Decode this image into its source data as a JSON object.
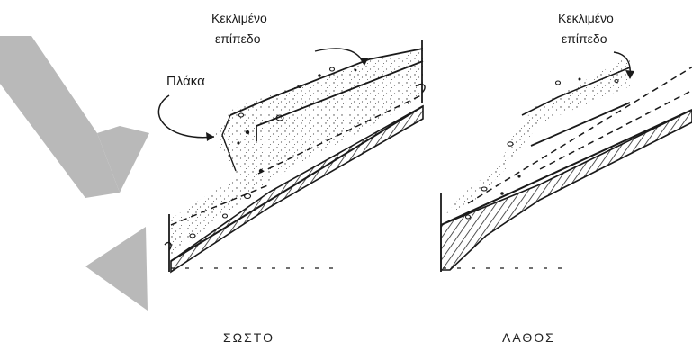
{
  "figures": [
    {
      "id": "correct",
      "label_inclined": [
        "Κεκλιμένο",
        "επίπεδο"
      ],
      "label_slab": "Πλάκα",
      "caption": "ΣΩΣΤΟ"
    },
    {
      "id": "wrong",
      "label_inclined": [
        "Κεκλιμένο",
        "επίπεδο"
      ],
      "caption": "ΛΑΘΟΣ"
    }
  ],
  "colors": {
    "ink": "#1a1a1a",
    "watermark": "#b9b9b9",
    "background": "#ffffff"
  },
  "icons": {
    "watermark": "letter-y-watermark"
  }
}
